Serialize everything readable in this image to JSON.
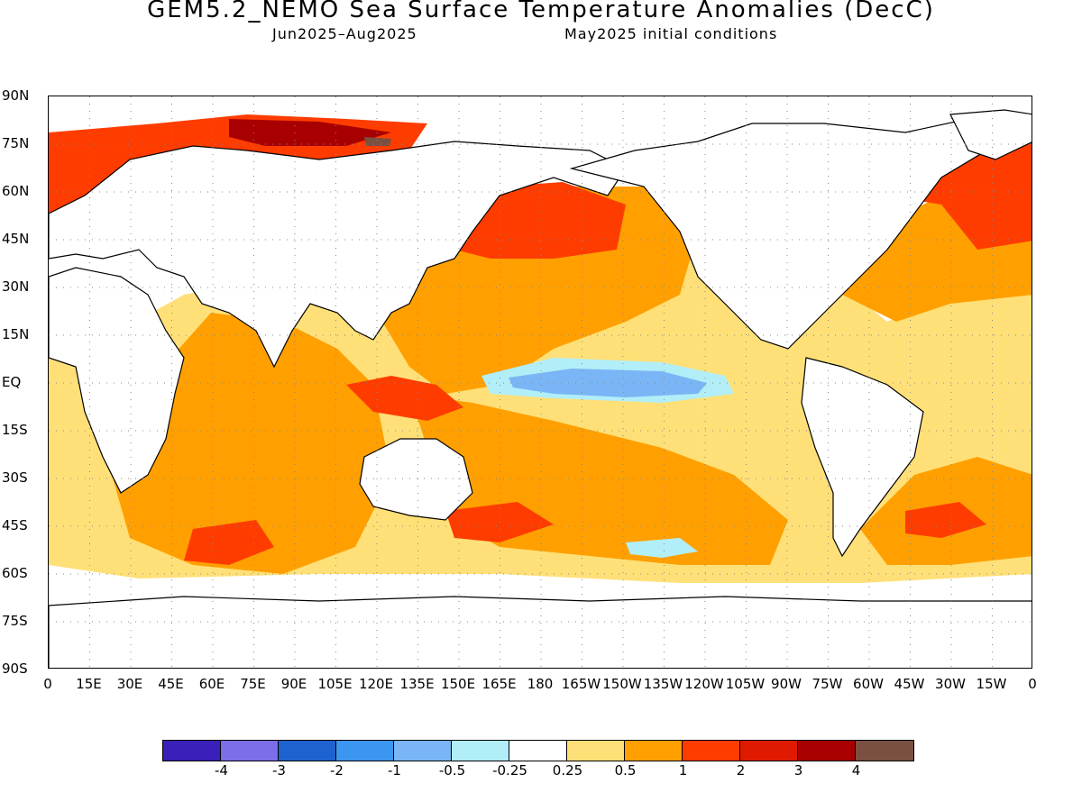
{
  "title": "GEM5.2_NEMO Sea Surface Temperature Anomalies (DecC)",
  "subtitle_left": "Jun2025–Aug2025",
  "subtitle_right": "May2025 initial conditions",
  "lat_labels": [
    "90N",
    "75N",
    "60N",
    "45N",
    "30N",
    "15N",
    "EQ",
    "15S",
    "30S",
    "45S",
    "60S",
    "75S",
    "90S"
  ],
  "lon_labels": [
    "0",
    "15E",
    "30E",
    "45E",
    "60E",
    "75E",
    "90E",
    "105E",
    "120E",
    "135E",
    "150E",
    "165E",
    "180",
    "165W",
    "150W",
    "135W",
    "120W",
    "105W",
    "90W",
    "75W",
    "60W",
    "45W",
    "30W",
    "15W",
    "0"
  ],
  "legend": {
    "colors": [
      "#3a20b8",
      "#7c6ee8",
      "#1e62d0",
      "#3c96f0",
      "#7ab6f5",
      "#b2eef8",
      "#ffffff",
      "#ffe078",
      "#ffa000",
      "#ff3c00",
      "#e01a00",
      "#a80000",
      "#7a5040"
    ],
    "labels": [
      "-4",
      "-3",
      "-2",
      "-1",
      "-0.5",
      "-0.25",
      "0.25",
      "0.5",
      "1",
      "2",
      "3",
      "4"
    ]
  },
  "colors": {
    "land": "#ffffff",
    "coast": "#000000",
    "grid": "#888888"
  }
}
